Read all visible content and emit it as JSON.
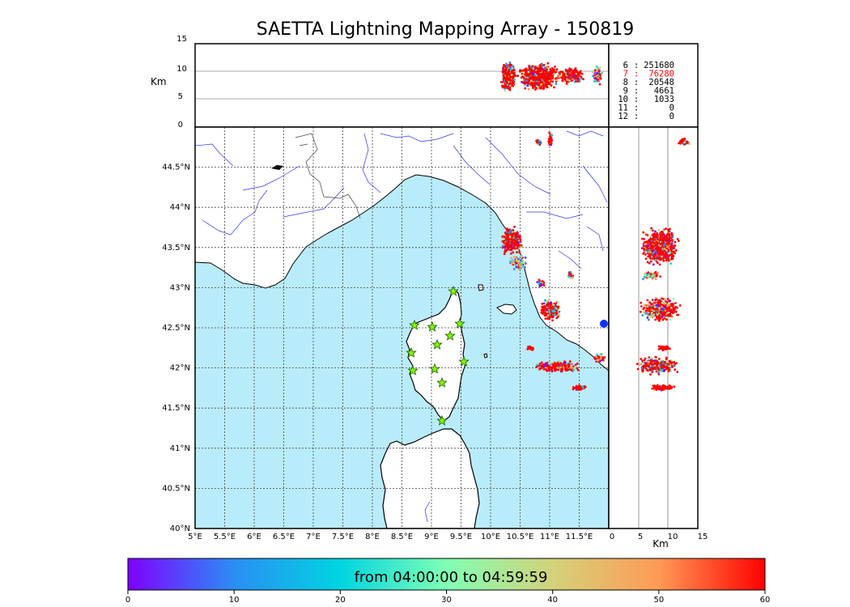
{
  "title": "SAETTA Lightning Mapping Array - 150819",
  "altitude_panel": {
    "label": "Km",
    "ticks": [
      "0",
      "5",
      "10",
      "15"
    ]
  },
  "side_panel": {
    "label": "Km",
    "ticks": [
      "0",
      "5",
      "10",
      "15"
    ]
  },
  "map": {
    "lon_labels": [
      "5°E",
      "5.5°E",
      "6°E",
      "6.5°E",
      "7°E",
      "7.5°E",
      "8°E",
      "8.5°E",
      "9°E",
      "9.5°E",
      "10°E",
      "10.5°E",
      "11°E",
      "11.5°E"
    ],
    "lat_labels": [
      "40°N",
      "40.5°N",
      "41°N",
      "41.5°N",
      "42°N",
      "42.5°N",
      "43°N",
      "43.5°N",
      "44°N",
      "44.5°N"
    ],
    "sea_color": "#b9ecfb",
    "station_color": "#7cfc00"
  },
  "station_counts": [
    {
      "stations": "6",
      "sep": ":",
      "count": "251680",
      "color": "#000000"
    },
    {
      "stations": "7",
      "sep": ":",
      "count": "76280",
      "color": "#ff0000"
    },
    {
      "stations": "8",
      "sep": ":",
      "count": "20548",
      "color": "#000000"
    },
    {
      "stations": "9",
      "sep": ":",
      "count": "4661",
      "color": "#000000"
    },
    {
      "stations": "10",
      "sep": ":",
      "count": "1033",
      "color": "#000000"
    },
    {
      "stations": "11",
      "sep": ":",
      "count": "0",
      "color": "#000000"
    },
    {
      "stations": "12",
      "sep": ":",
      "count": "0",
      "color": "#000000"
    }
  ],
  "colorbar": {
    "text": "from 04:00:00 to 04:59:59",
    "ticks": [
      "0",
      "10",
      "20",
      "30",
      "40",
      "50",
      "60"
    ],
    "colors": [
      "#7f00ff",
      "#2a8ef5",
      "#00d5e0",
      "#80ffb4",
      "#d4d27a",
      "#ff9a55",
      "#ff0000"
    ]
  }
}
